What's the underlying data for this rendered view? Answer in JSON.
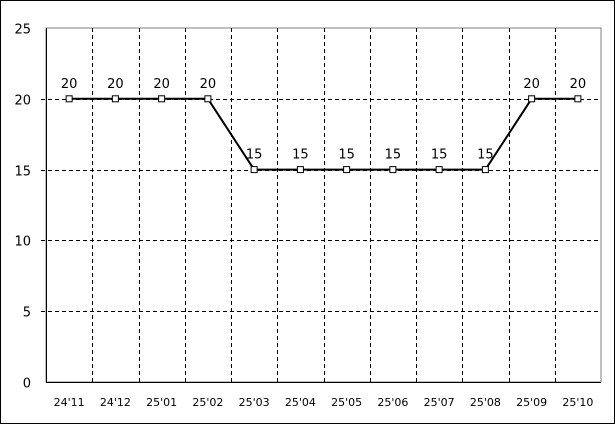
{
  "chart_data": {
    "type": "line",
    "categories": [
      "24'11",
      "24'12",
      "25'01",
      "25'02",
      "25'03",
      "25'04",
      "25'05",
      "25'06",
      "25'07",
      "25'08",
      "25'09",
      "25'10"
    ],
    "series": [
      {
        "values": [
          20,
          20,
          20,
          20,
          15,
          15,
          15,
          15,
          15,
          15,
          20,
          20
        ]
      }
    ],
    "data_labels": true,
    "ylim": [
      0,
      25
    ],
    "yticks": [
      0,
      5,
      10,
      15,
      20,
      25
    ],
    "grid": true,
    "marker": "square",
    "line_color": "#000000"
  }
}
